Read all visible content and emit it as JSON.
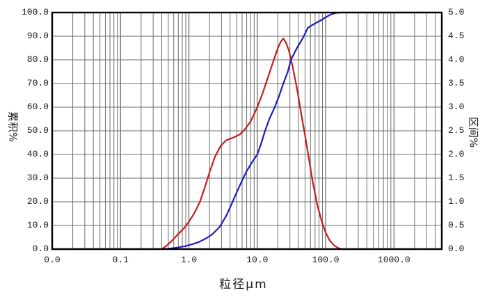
{
  "chart_data": {
    "type": "line",
    "title": "",
    "xlabel": "粒径μm",
    "x_scale": "log",
    "x_range": [
      0.01,
      5000
    ],
    "x_ticks": [
      {
        "v": 0.01,
        "label": "0.0"
      },
      {
        "v": 0.1,
        "label": "0.1"
      },
      {
        "v": 1,
        "label": "1.0"
      },
      {
        "v": 10,
        "label": "10.0"
      },
      {
        "v": 100,
        "label": "100.0"
      },
      {
        "v": 1000,
        "label": "1000.0"
      }
    ],
    "y_left": {
      "label": "累积%",
      "range": [
        0,
        100
      ],
      "step": 10,
      "tick_labels": [
        "0.0",
        "10.0",
        "20.0",
        "30.0",
        "40.0",
        "50.0",
        "60.0",
        "70.0",
        "80.0",
        "90.0",
        "100.0"
      ]
    },
    "y_right": {
      "label": "区间%",
      "range": [
        0,
        5
      ],
      "step": 0.5,
      "tick_labels": [
        "0.0",
        "0.5",
        "1.0",
        "1.5",
        "2.0",
        "2.5",
        "3.0",
        "3.5",
        "4.0",
        "4.5",
        "5.0"
      ]
    },
    "grid": {
      "on": true,
      "minor_log_x": true,
      "color": "#6e6e6e",
      "frame_color": "#000000"
    },
    "legend": {
      "visible": false
    },
    "series": [
      {
        "name": "cumulative-percent",
        "axis": "left",
        "color": "#1c1cc0",
        "points": [
          [
            0.01,
            0
          ],
          [
            0.42,
            0
          ],
          [
            0.5,
            0.2
          ],
          [
            0.6,
            0.45
          ],
          [
            0.7,
            0.7
          ],
          [
            0.9,
            1.3
          ],
          [
            1.1,
            2.0
          ],
          [
            1.4,
            3.0
          ],
          [
            1.8,
            4.6
          ],
          [
            2.2,
            6.3
          ],
          [
            2.8,
            9.3
          ],
          [
            3.5,
            14
          ],
          [
            4.2,
            19
          ],
          [
            5,
            24
          ],
          [
            6,
            29
          ],
          [
            7,
            33
          ],
          [
            8.5,
            37
          ],
          [
            10,
            40
          ],
          [
            11.5,
            45
          ],
          [
            13,
            50
          ],
          [
            15,
            55
          ],
          [
            18,
            60
          ],
          [
            21,
            65
          ],
          [
            24,
            70
          ],
          [
            28,
            75
          ],
          [
            31,
            80
          ],
          [
            38,
            85
          ],
          [
            46,
            89
          ],
          [
            55,
            93.5
          ],
          [
            68,
            95.2
          ],
          [
            84,
            96.6
          ],
          [
            100,
            98
          ],
          [
            120,
            99.2
          ],
          [
            140,
            99.8
          ],
          [
            165,
            100
          ],
          [
            5000,
            100
          ]
        ]
      },
      {
        "name": "interval-percent",
        "axis": "right",
        "color": "#c41e1e",
        "points": [
          [
            0.4,
            0
          ],
          [
            0.46,
            0.06
          ],
          [
            0.55,
            0.16
          ],
          [
            0.7,
            0.32
          ],
          [
            0.87,
            0.46
          ],
          [
            1.0,
            0.58
          ],
          [
            1.2,
            0.76
          ],
          [
            1.45,
            1.0
          ],
          [
            1.7,
            1.3
          ],
          [
            2.0,
            1.62
          ],
          [
            2.4,
            1.95
          ],
          [
            2.9,
            2.18
          ],
          [
            3.5,
            2.3
          ],
          [
            4.5,
            2.36
          ],
          [
            5.5,
            2.42
          ],
          [
            6.5,
            2.52
          ],
          [
            8,
            2.7
          ],
          [
            10,
            3.0
          ],
          [
            12,
            3.3
          ],
          [
            14.5,
            3.65
          ],
          [
            17,
            3.95
          ],
          [
            20,
            4.25
          ],
          [
            22,
            4.38
          ],
          [
            24,
            4.45
          ],
          [
            26,
            4.38
          ],
          [
            29,
            4.2
          ],
          [
            33,
            3.85
          ],
          [
            38,
            3.4
          ],
          [
            44,
            2.85
          ],
          [
            50,
            2.4
          ],
          [
            57,
            1.9
          ],
          [
            65,
            1.4
          ],
          [
            75,
            0.95
          ],
          [
            87,
            0.6
          ],
          [
            100,
            0.35
          ],
          [
            115,
            0.18
          ],
          [
            135,
            0.07
          ],
          [
            160,
            0.01
          ],
          [
            180,
            0
          ],
          [
            2000,
            0
          ]
        ]
      }
    ]
  }
}
